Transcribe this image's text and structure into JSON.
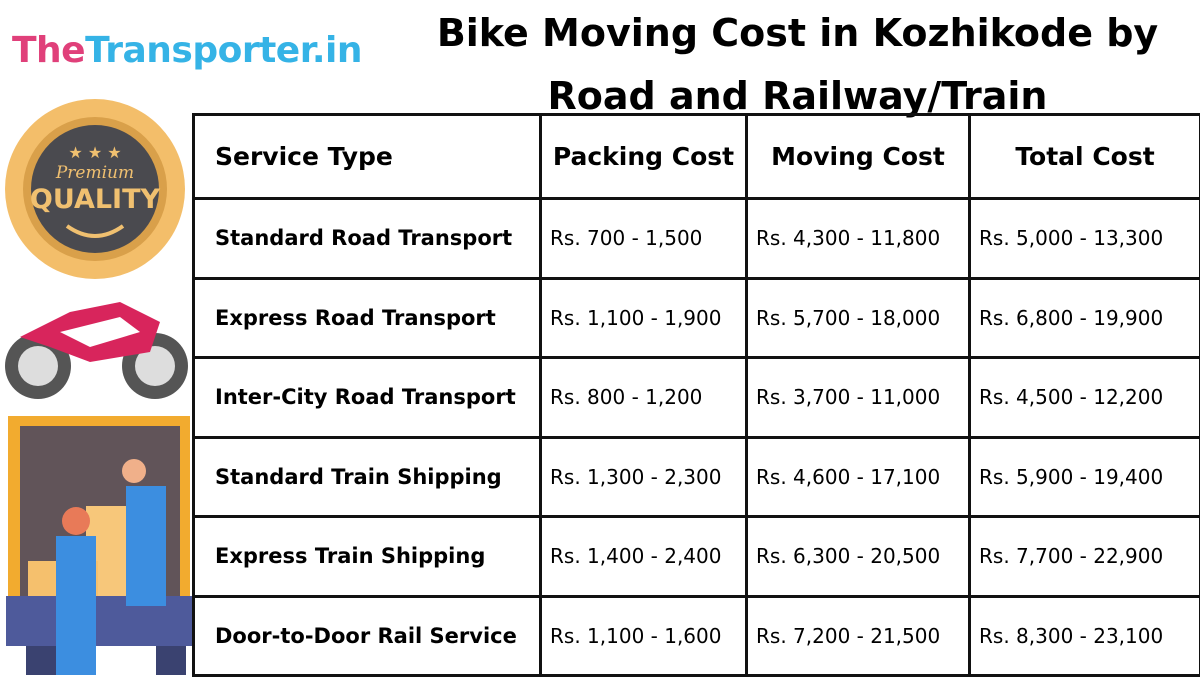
{
  "logo": {
    "part1": "The",
    "part2": "Transporter.in"
  },
  "title": {
    "line1": "Bike Moving Cost in Kozhikode by",
    "line2": "Road and Railway/Train"
  },
  "badge": {
    "top": "Premium",
    "bottom": "QUALITY"
  },
  "table": {
    "headers": [
      "Service Type",
      "Packing Cost",
      "Moving Cost",
      "Total Cost"
    ],
    "rows": [
      [
        "Standard Road Transport",
        "Rs. 700 - 1,500",
        "Rs. 4,300 - 11,800",
        "Rs. 5,000 - 13,300"
      ],
      [
        "Express Road Transport",
        "Rs. 1,100 - 1,900",
        "Rs. 5,700 - 18,000",
        "Rs. 6,800 - 19,900"
      ],
      [
        "Inter-City Road Transport",
        "Rs. 800 - 1,200",
        "Rs. 3,700 - 11,000",
        "Rs. 4,500 - 12,200"
      ],
      [
        "Standard Train Shipping",
        "Rs. 1,300 - 2,300",
        "Rs. 4,600 - 17,100",
        "Rs. 5,900 - 19,400"
      ],
      [
        "Express Train Shipping",
        "Rs. 1,400 - 2,400",
        "Rs. 6,300 - 20,500",
        "Rs. 7,700 - 22,900"
      ],
      [
        "Door-to-Door Rail Service",
        "Rs. 1,100 - 1,600",
        "Rs. 7,200 - 21,500",
        "Rs. 8,300 - 23,100"
      ]
    ]
  }
}
